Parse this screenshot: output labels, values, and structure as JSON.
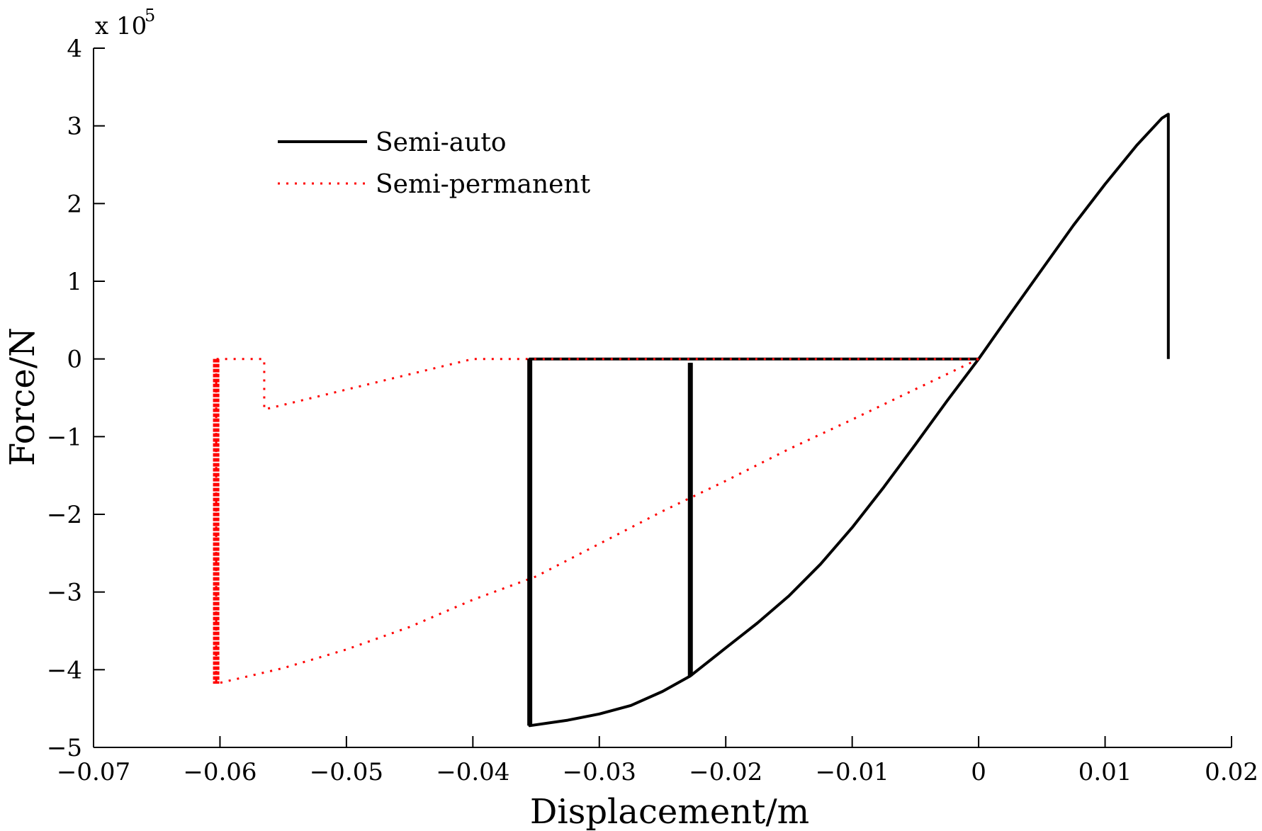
{
  "chart_data": {
    "type": "line",
    "title": "",
    "xlabel": "Displacement/m",
    "ylabel": "Force/N",
    "xlim": [
      -0.07,
      0.02
    ],
    "ylim": [
      -500000,
      400000
    ],
    "y_multiplier_label": "x 10",
    "y_multiplier_exponent": "5",
    "x_ticks": [
      -0.07,
      -0.06,
      -0.05,
      -0.04,
      -0.03,
      -0.02,
      -0.01,
      0,
      0.01,
      0.02
    ],
    "x_tick_labels": [
      "-0.07",
      "-0.06",
      "-0.05",
      "-0.04",
      "-0.03",
      "-0.02",
      "-0.01",
      "0",
      "0.01",
      "0.02"
    ],
    "y_ticks": [
      -500000,
      -400000,
      -300000,
      -200000,
      -100000,
      0,
      100000,
      200000,
      300000,
      400000
    ],
    "y_tick_labels": [
      "-5",
      "-4",
      "-3",
      "-2",
      "-1",
      "0",
      "1",
      "2",
      "3",
      "4"
    ],
    "grid": false,
    "legend_position": "top-left",
    "series": [
      {
        "name": "Semi-auto",
        "color": "#000000",
        "style": "solid",
        "x": [
          0.015,
          0.015,
          0.0145,
          0.0125,
          0.01,
          0.0075,
          0.005,
          0.0025,
          0.0,
          -0.0025,
          -0.005,
          -0.0075,
          -0.01,
          -0.0125,
          -0.015,
          -0.0175,
          -0.02,
          -0.0228,
          -0.025,
          -0.0275,
          -0.03,
          -0.0325,
          -0.0355,
          -0.0355,
          -0.02,
          0.0
        ],
        "y": [
          0,
          315000,
          310000,
          275000,
          225000,
          172000,
          115000,
          58000,
          0,
          -54000,
          -110000,
          -165000,
          -217000,
          -264000,
          -305000,
          -340000,
          -372000,
          -408000,
          -428000,
          -446000,
          -457000,
          -465000,
          -472000,
          0,
          0,
          0
        ]
      },
      {
        "name": "Semi-auto",
        "color": "#000000",
        "style": "solid",
        "x": [
          -0.0228,
          -0.0228
        ],
        "y": [
          -408000,
          -5000
        ]
      },
      {
        "name": "Semi-permanent",
        "color": "#ff0000",
        "style": "dotted",
        "x": [
          0.0,
          -0.005,
          -0.01,
          -0.015,
          -0.02,
          -0.025,
          -0.03,
          -0.035,
          -0.04,
          -0.045,
          -0.05,
          -0.055,
          -0.0603,
          -0.0603,
          -0.0565,
          -0.0565,
          -0.04,
          -0.02,
          0.0
        ],
        "y": [
          0,
          -39000,
          -78000,
          -116000,
          -157000,
          -196000,
          -238000,
          -280000,
          -310000,
          -345000,
          -374000,
          -398000,
          -418000,
          0,
          0,
          -65000,
          0,
          0,
          0
        ]
      }
    ]
  }
}
